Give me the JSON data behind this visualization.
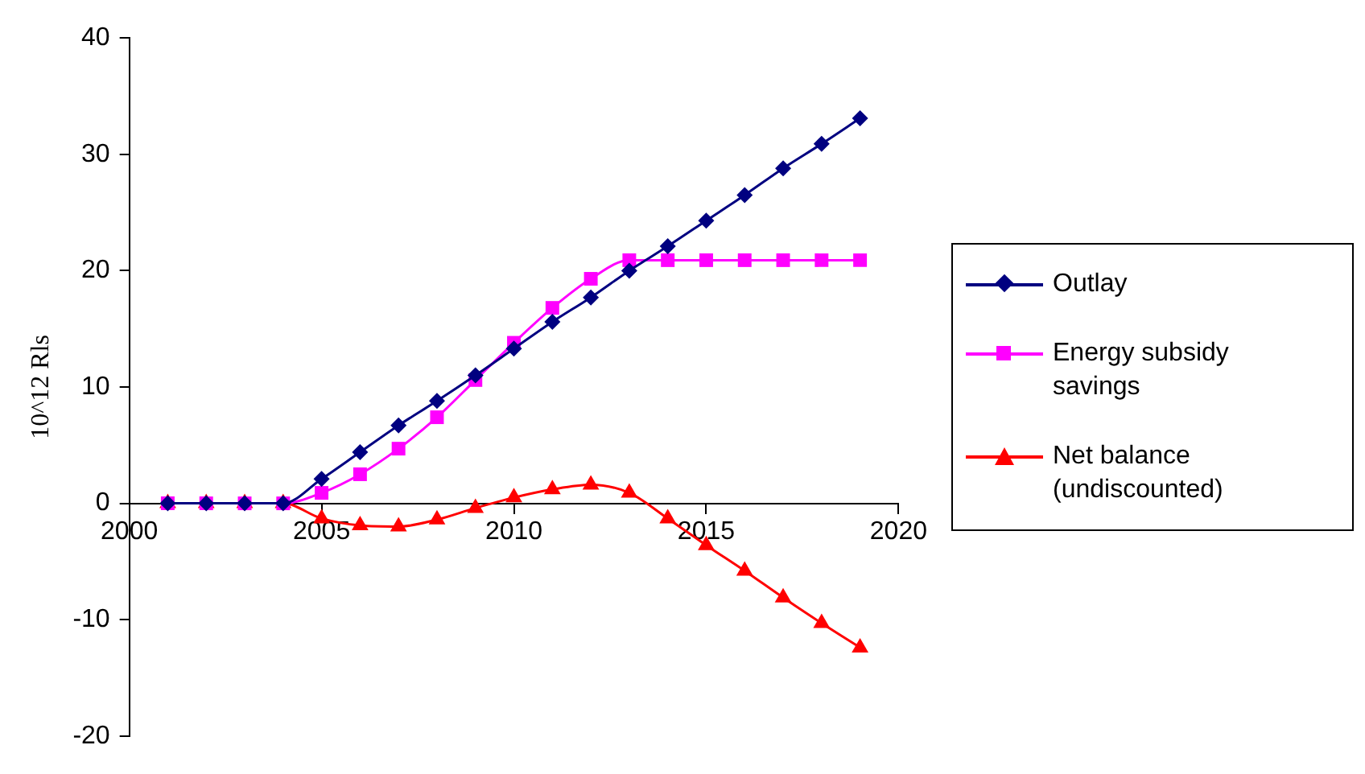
{
  "chart_data": {
    "type": "line",
    "ylabel": "10^12 Rls",
    "xlim": [
      2000,
      2020
    ],
    "xticks": [
      2000,
      2005,
      2010,
      2015,
      2020
    ],
    "ylim": [
      -20,
      40
    ],
    "yticks": [
      -20,
      -10,
      0,
      10,
      20,
      30,
      40
    ],
    "grid": false,
    "legend": "right",
    "x": [
      2001,
      2002,
      2003,
      2004,
      2005,
      2006,
      2007,
      2008,
      2009,
      2010,
      2011,
      2012,
      2013,
      2014,
      2015,
      2016,
      2017,
      2018,
      2019
    ],
    "series": [
      {
        "name": "Outlay",
        "color": "#000080",
        "marker": "diamond",
        "values": [
          0,
          0,
          0,
          0,
          2.1,
          4.4,
          6.7,
          8.8,
          11.0,
          13.3,
          15.6,
          17.7,
          20.0,
          22.1,
          24.3,
          26.5,
          28.8,
          30.9,
          33.1
        ]
      },
      {
        "name": "Energy subsidy savings",
        "color": "#ff00ff",
        "marker": "square",
        "values": [
          0,
          0,
          0,
          0,
          0.9,
          2.5,
          4.7,
          7.4,
          10.6,
          13.8,
          16.8,
          19.3,
          20.9,
          20.9,
          20.9,
          20.9,
          20.9,
          20.9,
          20.9
        ]
      },
      {
        "name": "Net balance (undiscounted)",
        "color": "#ff0000",
        "marker": "triangle",
        "values": [
          0,
          0,
          0,
          0,
          -1.3,
          -1.9,
          -2.0,
          -1.4,
          -0.4,
          0.5,
          1.2,
          1.6,
          0.9,
          -1.3,
          -3.6,
          -5.8,
          -8.1,
          -10.3,
          -12.4
        ]
      }
    ]
  }
}
